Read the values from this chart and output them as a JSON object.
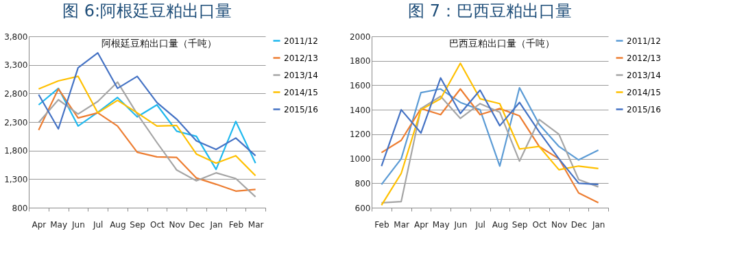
{
  "chart_data": [
    {
      "type": "line",
      "title": "图 6:阿根廷豆粕出口量",
      "subtitle": "阿根廷豆粕出口量（千吨）",
      "categories": [
        "Apr",
        "May",
        "Jun",
        "Jul",
        "Aug",
        "Sep",
        "Oct",
        "Nov",
        "Dec",
        "Jan",
        "Feb",
        "Mar"
      ],
      "series": [
        {
          "name": "2011/12",
          "color": "#1fb8ee",
          "values": [
            2600,
            2890,
            2230,
            2470,
            2730,
            2390,
            2600,
            2140,
            2050,
            1470,
            2310,
            1580
          ]
        },
        {
          "name": "2012/13",
          "color": "#ed7d31",
          "values": [
            2160,
            2880,
            2370,
            2460,
            2230,
            1770,
            1690,
            1680,
            1320,
            1210,
            1090,
            1120
          ]
        },
        {
          "name": "2013/14",
          "color": "#a5a5a5",
          "values": [
            2290,
            2690,
            2440,
            2660,
            3000,
            2440,
            1940,
            1460,
            1270,
            1410,
            1310,
            990
          ]
        },
        {
          "name": "2014/15",
          "color": "#ffc000",
          "values": [
            2880,
            3020,
            3100,
            2460,
            2680,
            2460,
            2230,
            2240,
            1740,
            1580,
            1710,
            1360
          ]
        },
        {
          "name": "2015/16",
          "color": "#4472c4",
          "values": [
            2780,
            2180,
            3250,
            3510,
            2890,
            3100,
            2640,
            2350,
            1970,
            1820,
            2020,
            1710
          ]
        }
      ],
      "ylim": [
        800,
        3800
      ],
      "yticks": [
        {
          "value": 800,
          "label": "800"
        },
        {
          "value": 1300,
          "label": "1,300"
        },
        {
          "value": 1800,
          "label": "1,800"
        },
        {
          "value": 2300,
          "label": "2,300"
        },
        {
          "value": 2800,
          "label": "2,800"
        },
        {
          "value": 3300,
          "label": "3,300"
        },
        {
          "value": 3800,
          "label": "3,800"
        }
      ],
      "grid": "y",
      "legend": "right",
      "marker": "none",
      "line_style": "solid"
    },
    {
      "type": "line",
      "title": "图 7：巴西豆粕出口量",
      "subtitle": "巴西豆粕出口量（千吨）",
      "categories": [
        "Feb",
        "Mar",
        "Apr",
        "May",
        "Jun",
        "Jul",
        "Aug",
        "Sep",
        "Oct",
        "Nov",
        "Dec",
        "Jan"
      ],
      "series": [
        {
          "name": "2011/12",
          "color": "#5b9bd5",
          "values": [
            790,
            1000,
            1540,
            1570,
            1460,
            1400,
            940,
            1580,
            1280,
            1100,
            990,
            1070
          ]
        },
        {
          "name": "2012/13",
          "color": "#ed7d31",
          "values": [
            1050,
            1150,
            1410,
            1360,
            1570,
            1360,
            1410,
            1350,
            1100,
            1000,
            720,
            640
          ]
        },
        {
          "name": "2013/14",
          "color": "#a5a5a5",
          "values": [
            640,
            650,
            1410,
            1510,
            1330,
            1450,
            1380,
            980,
            1320,
            1200,
            830,
            770
          ]
        },
        {
          "name": "2014/15",
          "color": "#ffc000",
          "values": [
            620,
            880,
            1400,
            1490,
            1780,
            1490,
            1450,
            1080,
            1100,
            910,
            940,
            920
          ]
        },
        {
          "name": "2015/16",
          "color": "#4472c4",
          "values": [
            940,
            1400,
            1210,
            1660,
            1370,
            1560,
            1270,
            1460,
            1220,
            1000,
            800,
            790
          ]
        }
      ],
      "ylim": [
        600,
        2000
      ],
      "yticks": [
        600,
        800,
        1000,
        1200,
        1400,
        1600,
        1800,
        2000
      ],
      "grid": "y",
      "legend": "right",
      "marker": "none",
      "line_style": "solid"
    }
  ]
}
